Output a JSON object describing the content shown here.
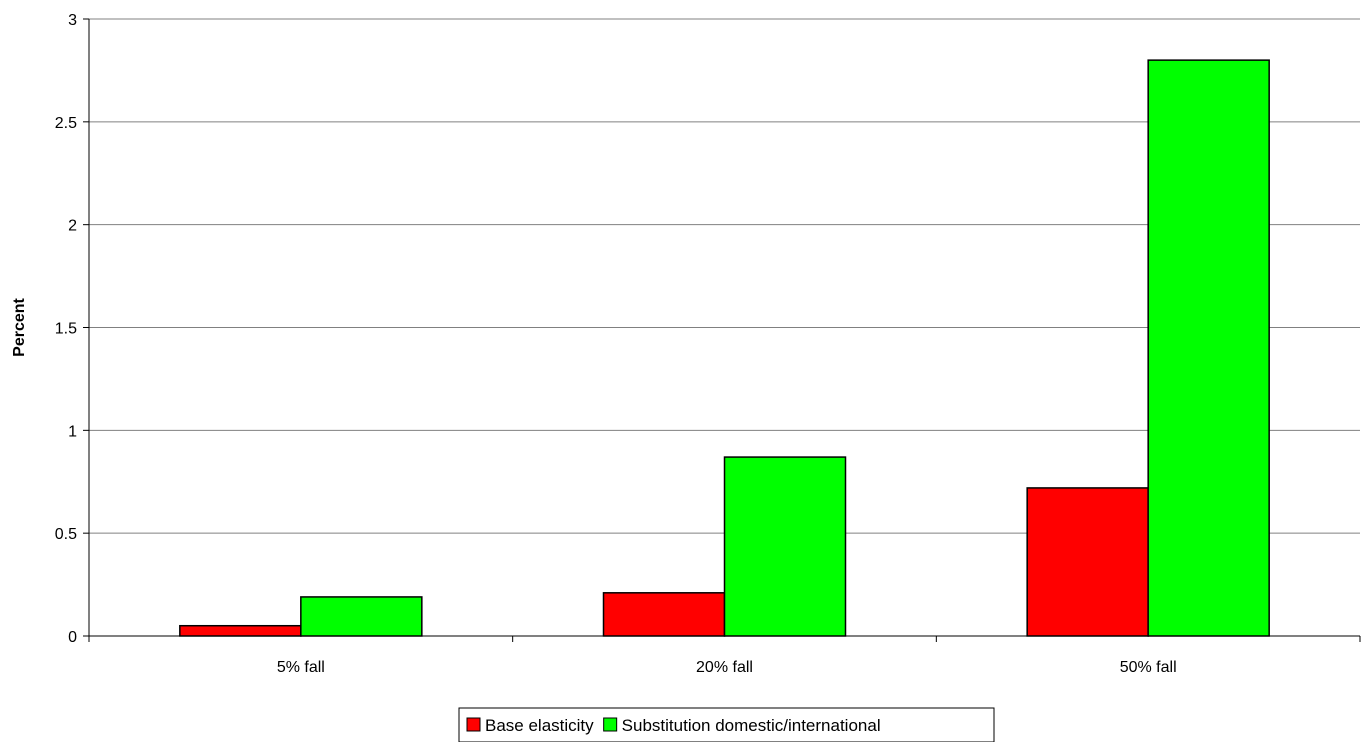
{
  "chart_data": {
    "type": "bar",
    "title": "",
    "xlabel": "",
    "ylabel": "Percent",
    "categories": [
      "5% fall",
      "20% fall",
      "50% fall"
    ],
    "series": [
      {
        "name": "Base elasticity",
        "color": "#ff0000",
        "values": [
          0.05,
          0.21,
          0.72
        ]
      },
      {
        "name": "Substitution domestic/international",
        "color": "#00ff00",
        "values": [
          0.19,
          0.87,
          2.8
        ]
      }
    ],
    "ylim": [
      0,
      3
    ],
    "yticks": [
      "0",
      "0.5",
      "1",
      "1.5",
      "2",
      "2.5",
      "3"
    ],
    "grid": true,
    "legend_position": "bottom-center"
  }
}
